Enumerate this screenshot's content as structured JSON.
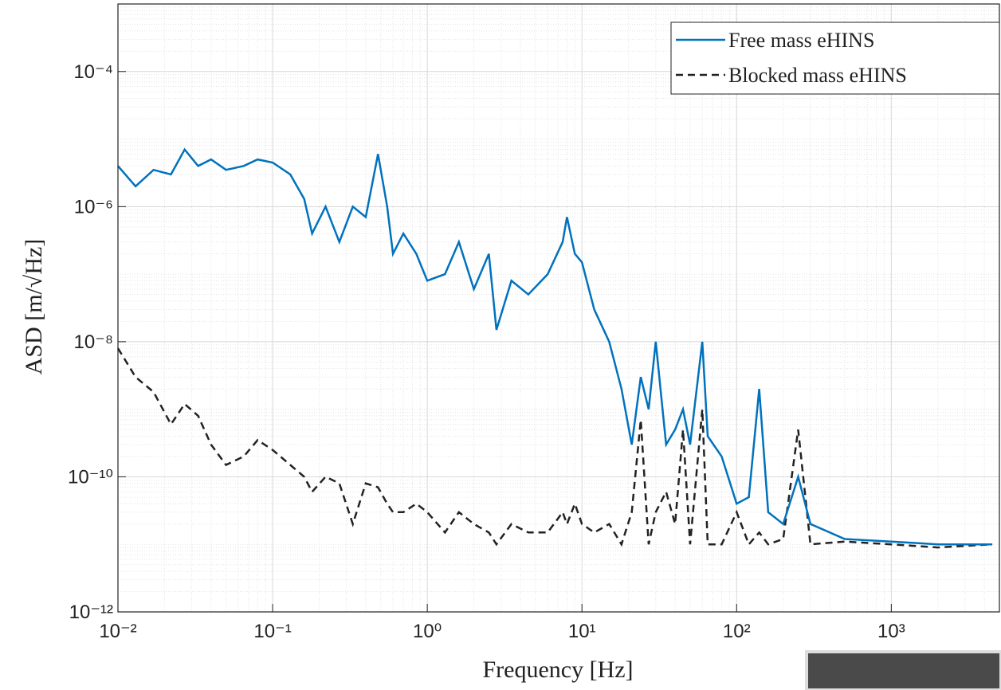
{
  "chart_data": {
    "type": "line",
    "xlabel": "Frequency [Hz]",
    "ylabel": "ASD [m/√Hz]",
    "xscale": "log",
    "yscale": "log",
    "grid": true,
    "minor_grid": true,
    "legend": "top-right",
    "xlim": [
      0.01,
      5000
    ],
    "ylim": [
      1e-12,
      0.001
    ],
    "xticks": [
      {
        "value": 0.01,
        "label": "10⁻²"
      },
      {
        "value": 0.1,
        "label": "10⁻¹"
      },
      {
        "value": 1,
        "label": "10⁰"
      },
      {
        "value": 10,
        "label": "10¹"
      },
      {
        "value": 100,
        "label": "10²"
      },
      {
        "value": 1000,
        "label": "10³"
      }
    ],
    "yticks": [
      {
        "value": 1e-12,
        "label": "10⁻¹²"
      },
      {
        "value": 1e-10,
        "label": "10⁻¹⁰"
      },
      {
        "value": 1e-08,
        "label": "10⁻⁸"
      },
      {
        "value": 1e-06,
        "label": "10⁻⁶"
      },
      {
        "value": 0.0001,
        "label": "10⁻⁴"
      }
    ],
    "x": [
      0.01,
      0.013,
      0.017,
      0.022,
      0.027,
      0.033,
      0.04,
      0.05,
      0.065,
      0.08,
      0.1,
      0.13,
      0.16,
      0.18,
      0.22,
      0.27,
      0.33,
      0.4,
      0.48,
      0.55,
      0.6,
      0.7,
      0.85,
      1.0,
      1.3,
      1.6,
      2.0,
      2.5,
      2.8,
      3.5,
      4.5,
      6,
      7.5,
      8,
      9,
      10,
      12,
      15,
      18,
      21,
      24,
      27,
      30,
      35,
      40,
      45,
      50,
      60,
      65,
      80,
      100,
      120,
      140,
      160,
      200,
      250,
      300,
      500,
      1000,
      2000,
      4500
    ],
    "series": [
      {
        "name": "Free mass eHINS",
        "color": "#0072bd",
        "style": "solid",
        "values": [
          4e-06,
          2e-06,
          3.5e-06,
          3e-06,
          7e-06,
          4e-06,
          5e-06,
          3.5e-06,
          4e-06,
          5e-06,
          4.5e-06,
          3e-06,
          1.3e-06,
          4e-07,
          1e-06,
          3e-07,
          1e-06,
          7e-07,
          6e-06,
          1e-06,
          2e-07,
          4e-07,
          2e-07,
          8e-08,
          1e-07,
          3e-07,
          6e-08,
          2e-07,
          1.5e-08,
          8e-08,
          5e-08,
          1e-07,
          3e-07,
          7e-07,
          2e-07,
          1.5e-07,
          3e-08,
          1e-08,
          2e-09,
          3e-10,
          3e-09,
          1e-09,
          1e-08,
          3e-10,
          5e-10,
          1e-09,
          3e-10,
          1e-08,
          4e-10,
          2e-10,
          4e-11,
          5e-11,
          2e-09,
          3e-11,
          2e-11,
          1e-10,
          2e-11,
          1.2e-11,
          1.1e-11,
          1e-11,
          1e-11
        ]
      },
      {
        "name": "Blocked mass eHINS",
        "color": "#222222",
        "style": "dashed",
        "values": [
          8e-09,
          3e-09,
          1.8e-09,
          6e-10,
          1.2e-09,
          8e-10,
          3e-10,
          1.5e-10,
          2e-10,
          3.5e-10,
          2.5e-10,
          1.5e-10,
          1e-10,
          6e-11,
          1e-10,
          8e-11,
          2e-11,
          8e-11,
          7e-11,
          4e-11,
          3e-11,
          3e-11,
          4e-11,
          3e-11,
          1.5e-11,
          3e-11,
          2e-11,
          1.5e-11,
          1e-11,
          2e-11,
          1.5e-11,
          1.5e-11,
          3e-11,
          2e-11,
          4e-11,
          2e-11,
          1.5e-11,
          2e-11,
          1e-11,
          3e-11,
          7e-10,
          1e-11,
          3e-11,
          6e-11,
          2e-11,
          5e-10,
          1e-11,
          1e-09,
          1e-11,
          1e-11,
          3e-11,
          1e-11,
          1.5e-11,
          1e-11,
          1.2e-11,
          5e-10,
          1e-11,
          1.1e-11,
          1e-11,
          9e-12,
          1e-11
        ]
      }
    ]
  }
}
